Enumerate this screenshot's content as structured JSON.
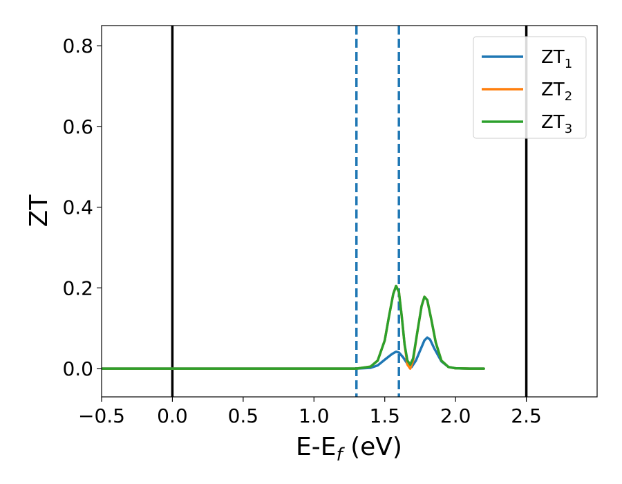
{
  "chart_data": {
    "type": "line",
    "title": "",
    "xlabel": {
      "main": "E-E",
      "sub": "f",
      "unit": " (eV)"
    },
    "ylabel": "ZT",
    "xlim": [
      -0.5,
      3.0
    ],
    "ylim": [
      -0.07,
      0.85
    ],
    "x_ticks": [
      -0.5,
      0.0,
      0.5,
      1.0,
      1.5,
      2.0,
      2.5
    ],
    "x_tick_labels": [
      "−0.5",
      "0.0",
      "0.5",
      "1.0",
      "1.5",
      "2.0",
      "2.5"
    ],
    "y_ticks": [
      0.0,
      0.2,
      0.4,
      0.6,
      0.8
    ],
    "y_tick_labels": [
      "0.0",
      "0.2",
      "0.4",
      "0.6",
      "0.8"
    ],
    "grid": false,
    "legend_position": "top-right",
    "vertical_lines": [
      {
        "x": 0.0,
        "style": "solid",
        "color": "#000000"
      },
      {
        "x": 2.5,
        "style": "solid",
        "color": "#000000"
      },
      {
        "x": 1.3,
        "style": "dashed",
        "color": "#1f77b4"
      },
      {
        "x": 1.6,
        "style": "dashed",
        "color": "#1f77b4"
      }
    ],
    "series": [
      {
        "name": "ZT",
        "name_sub": "1",
        "color": "#1f77b4",
        "x": [
          -0.5,
          1.0,
          1.3,
          1.4,
          1.45,
          1.5,
          1.55,
          1.58,
          1.6,
          1.63,
          1.66,
          1.69,
          1.72,
          1.75,
          1.78,
          1.8,
          1.82,
          1.85,
          1.9,
          1.95,
          2.0,
          2.1,
          2.2
        ],
        "y": [
          0.0,
          0.0,
          0.0,
          0.002,
          0.008,
          0.022,
          0.036,
          0.042,
          0.04,
          0.028,
          0.012,
          0.004,
          0.02,
          0.045,
          0.07,
          0.077,
          0.072,
          0.05,
          0.018,
          0.004,
          0.001,
          0.0,
          0.0
        ]
      },
      {
        "name": "ZT",
        "name_sub": "2",
        "color": "#ff7f0e",
        "x": [
          -0.5,
          1.0,
          1.3,
          1.4,
          1.45,
          1.5,
          1.53,
          1.56,
          1.58,
          1.6,
          1.62,
          1.64,
          1.66,
          1.68,
          1.7,
          1.73,
          1.76,
          1.78,
          1.8,
          1.83,
          1.86,
          1.9,
          1.95,
          2.0,
          2.1,
          2.2
        ],
        "y": [
          0.0,
          0.0,
          0.0,
          0.005,
          0.02,
          0.07,
          0.13,
          0.185,
          0.205,
          0.19,
          0.13,
          0.06,
          0.01,
          0.0,
          0.02,
          0.09,
          0.155,
          0.178,
          0.17,
          0.12,
          0.065,
          0.02,
          0.004,
          0.001,
          0.0,
          0.0
        ]
      },
      {
        "name": "ZT",
        "name_sub": "3",
        "color": "#2ca02c",
        "x": [
          -0.5,
          1.0,
          1.3,
          1.4,
          1.45,
          1.5,
          1.53,
          1.56,
          1.58,
          1.6,
          1.62,
          1.64,
          1.66,
          1.68,
          1.7,
          1.73,
          1.76,
          1.78,
          1.8,
          1.83,
          1.86,
          1.9,
          1.95,
          2.0,
          2.1,
          2.2
        ],
        "y": [
          0.0,
          0.0,
          0.0,
          0.005,
          0.02,
          0.07,
          0.13,
          0.185,
          0.205,
          0.19,
          0.13,
          0.06,
          0.02,
          0.01,
          0.025,
          0.09,
          0.155,
          0.178,
          0.17,
          0.12,
          0.065,
          0.02,
          0.004,
          0.001,
          0.0,
          0.0
        ]
      }
    ]
  }
}
